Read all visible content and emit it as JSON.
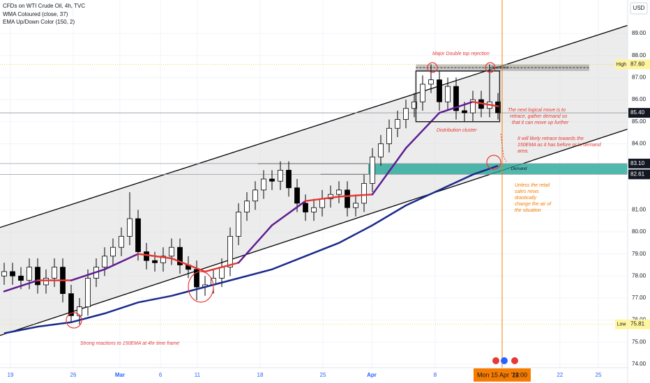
{
  "chart_data": {
    "type": "candlestick",
    "title": "CFDs on WTI Crude Oil, 4h, TVC",
    "legend": [
      "WMA Coloured (close, 37)",
      "EMA Up/Down Color (150, 2)"
    ],
    "currency": "USD",
    "x": [
      0,
      1,
      2,
      3,
      4,
      5,
      6,
      7,
      8,
      9,
      10,
      11,
      12,
      13,
      14,
      15,
      16,
      17,
      18,
      19,
      20,
      21,
      22,
      23,
      24,
      25,
      26,
      27,
      28,
      29,
      30,
      31,
      32,
      33,
      34,
      35,
      36,
      37,
      38,
      39,
      40,
      41,
      42,
      43,
      44,
      45,
      46,
      47,
      48,
      49,
      50,
      51,
      52,
      53,
      54,
      55,
      56,
      57,
      58,
      59
    ],
    "open": [
      78.0,
      78.2,
      78.0,
      77.8,
      78.4,
      77.6,
      77.9,
      78.4,
      77.2,
      76.2,
      76.6,
      77.9,
      78.4,
      78.9,
      79.3,
      79.8,
      80.6,
      79.1,
      78.7,
      78.6,
      78.9,
      79.3,
      78.5,
      78.3,
      77.5,
      77.6,
      77.9,
      78.4,
      79.8,
      80.9,
      81.4,
      81.9,
      82.4,
      82.3,
      82.8,
      82.0,
      81.3,
      80.9,
      81.1,
      81.5,
      81.7,
      81.9,
      81.1,
      81.3,
      82.2,
      83.4,
      84.0,
      84.7,
      85.1,
      85.6,
      85.9,
      86.7,
      86.9,
      85.9,
      86.6,
      85.5,
      85.4,
      86.0,
      85.6,
      85.9
    ],
    "high": [
      78.6,
      78.6,
      78.4,
      78.8,
      78.8,
      78.3,
      78.8,
      78.8,
      77.6,
      77.0,
      78.3,
      78.8,
      79.3,
      79.7,
      80.2,
      81.8,
      81.0,
      79.5,
      79.1,
      79.3,
      79.7,
      79.7,
      78.9,
      78.7,
      78.0,
      78.3,
      78.8,
      80.2,
      81.3,
      81.8,
      82.3,
      82.8,
      82.8,
      83.2,
      83.2,
      82.4,
      81.7,
      81.5,
      81.9,
      82.1,
      82.3,
      82.3,
      81.7,
      82.6,
      83.8,
      84.4,
      85.1,
      85.5,
      86.0,
      86.3,
      87.1,
      87.6,
      87.3,
      87.0,
      87.0,
      85.9,
      86.4,
      86.4,
      87.6,
      86.3
    ],
    "low": [
      77.6,
      77.6,
      77.4,
      77.4,
      77.2,
      77.2,
      77.5,
      76.8,
      75.9,
      75.8,
      76.2,
      77.5,
      78.0,
      78.5,
      78.9,
      79.4,
      78.7,
      78.3,
      78.2,
      78.2,
      78.5,
      78.1,
      77.9,
      76.9,
      77.1,
      77.2,
      77.5,
      78.0,
      79.4,
      80.5,
      81.0,
      81.5,
      81.9,
      81.9,
      81.6,
      80.9,
      80.5,
      80.5,
      80.7,
      81.1,
      81.3,
      80.7,
      80.7,
      80.9,
      81.8,
      83.0,
      83.6,
      84.3,
      84.7,
      85.2,
      85.5,
      86.3,
      85.5,
      85.5,
      85.1,
      85.0,
      85.0,
      85.2,
      85.2,
      85.1
    ],
    "close": [
      78.2,
      78.0,
      77.8,
      78.4,
      77.6,
      77.9,
      78.4,
      77.2,
      76.2,
      76.6,
      77.9,
      78.4,
      78.9,
      79.3,
      79.8,
      80.6,
      79.1,
      78.7,
      78.6,
      78.9,
      79.3,
      78.5,
      78.3,
      77.5,
      77.6,
      77.9,
      78.4,
      79.8,
      80.9,
      81.4,
      81.9,
      82.4,
      82.3,
      82.8,
      82.0,
      81.3,
      80.9,
      81.1,
      81.5,
      81.7,
      81.9,
      81.1,
      81.3,
      82.2,
      83.4,
      84.0,
      84.7,
      85.1,
      85.6,
      85.9,
      86.7,
      86.9,
      85.9,
      86.6,
      85.5,
      85.4,
      86.0,
      85.6,
      85.9,
      85.4
    ],
    "lines": [
      {
        "x": [
          0,
          4,
          8,
          12,
          16,
          20,
          24,
          28,
          32,
          36,
          40,
          44,
          48,
          52,
          56,
          59
        ],
        "values": [
          77.3,
          77.8,
          77.8,
          78.3,
          79.0,
          78.8,
          78.2,
          78.6,
          80.3,
          81.4,
          81.6,
          81.7,
          83.8,
          85.4,
          85.9,
          85.7
        ],
        "color": "#5e1d91",
        "flat_color": "#e53935"
      },
      {
        "x": [
          0,
          4,
          8,
          12,
          16,
          20,
          24,
          28,
          32,
          36,
          40,
          44,
          48,
          52,
          56,
          59
        ],
        "values": [
          75.4,
          75.7,
          75.9,
          76.3,
          76.8,
          77.1,
          77.5,
          77.9,
          78.3,
          78.9,
          79.5,
          80.3,
          81.2,
          81.9,
          82.6,
          83.0
        ],
        "color": "#1a2a8c"
      }
    ],
    "channel": {
      "upper": {
        "x": [
          -0.5,
          77.2
        ],
        "y": [
          80.2,
          89.7
        ]
      },
      "lower": {
        "x": [
          -0.5,
          77.2
        ],
        "y": [
          75.3,
          85.0
        ]
      }
    },
    "xlim": [
      -0.5,
      74.5
    ],
    "ylim": [
      73.84,
      90.52
    ],
    "xticks": [
      {
        "value": 0.75,
        "label": "19"
      },
      {
        "value": 8.25,
        "label": "26"
      },
      {
        "value": 13.83,
        "label": "Mar"
      },
      {
        "value": 18.67,
        "label": "6"
      },
      {
        "value": 23.08,
        "label": "11"
      },
      {
        "value": 30.58,
        "label": "18"
      },
      {
        "value": 38.08,
        "label": "25"
      },
      {
        "value": 43.92,
        "label": "Apr"
      },
      {
        "value": 51.5,
        "label": "8"
      },
      {
        "value": 66.4,
        "label": "22"
      },
      {
        "value": 71,
        "label": "25"
      }
    ],
    "yticks": [
      {
        "value": 74,
        "label": "74.00"
      },
      {
        "value": 75,
        "label": "75.00"
      },
      {
        "value": 76,
        "label": "76.00"
      },
      {
        "value": 77,
        "label": "77.00"
      },
      {
        "value": 78,
        "label": "78.00"
      },
      {
        "value": 79,
        "label": "79.00"
      },
      {
        "value": 80,
        "label": "80.00"
      },
      {
        "value": 81,
        "label": "81.00"
      },
      {
        "value": 84,
        "label": "84.00"
      },
      {
        "value": 85,
        "label": "85.00"
      },
      {
        "value": 86,
        "label": "86.00"
      },
      {
        "value": 87,
        "label": "87.00"
      },
      {
        "value": 88,
        "label": "88.00"
      },
      {
        "value": 89,
        "label": "89.00"
      }
    ],
    "levels": [
      {
        "value": 87.6,
        "label": "87.60",
        "tag": "High"
      },
      {
        "value": 85.4,
        "label": "85.40"
      },
      {
        "value": 83.1,
        "label": "83.10"
      },
      {
        "value": 82.61,
        "label": "82.61"
      },
      {
        "value": 75.81,
        "label": "75.81",
        "tag": "Low"
      }
    ],
    "zones": {
      "demand": {
        "x": [
          43.5,
          74.5
        ],
        "y": [
          82.61,
          83.1
        ],
        "label": "Demand"
      },
      "resistance": {
        "x": [
          49.2,
          69.9
        ],
        "y": [
          87.3,
          87.6
        ],
        "label": "Resistance"
      },
      "distribution": {
        "x": [
          49.2,
          59.2
        ],
        "y": [
          85.0,
          87.3
        ]
      },
      "segments": [
        {
          "x": [
            30.3,
            43.5
          ],
          "y": 83.1
        },
        {
          "x": [
            37.8,
            43.5
          ],
          "y": 82.61
        }
      ]
    },
    "cursor_label": "Mon 15 Apr '24",
    "cursor_time": "11:00",
    "annotations": {
      "double_top": "Major Double top rejection",
      "distribution": "Distribution cluster",
      "next_move": [
        "The next logical move is to",
        "retrace, gather demand so",
        "that it can move up further"
      ],
      "retrace": [
        "It will likely retrace towards the",
        "150EMA as it has before or to demand",
        "area."
      ],
      "news": [
        "Unless the retail",
        "sales news",
        "drastically",
        "change the air of",
        "the situation"
      ],
      "reactions": "Strong reactions to 150EMA at 4hr time frame"
    }
  }
}
